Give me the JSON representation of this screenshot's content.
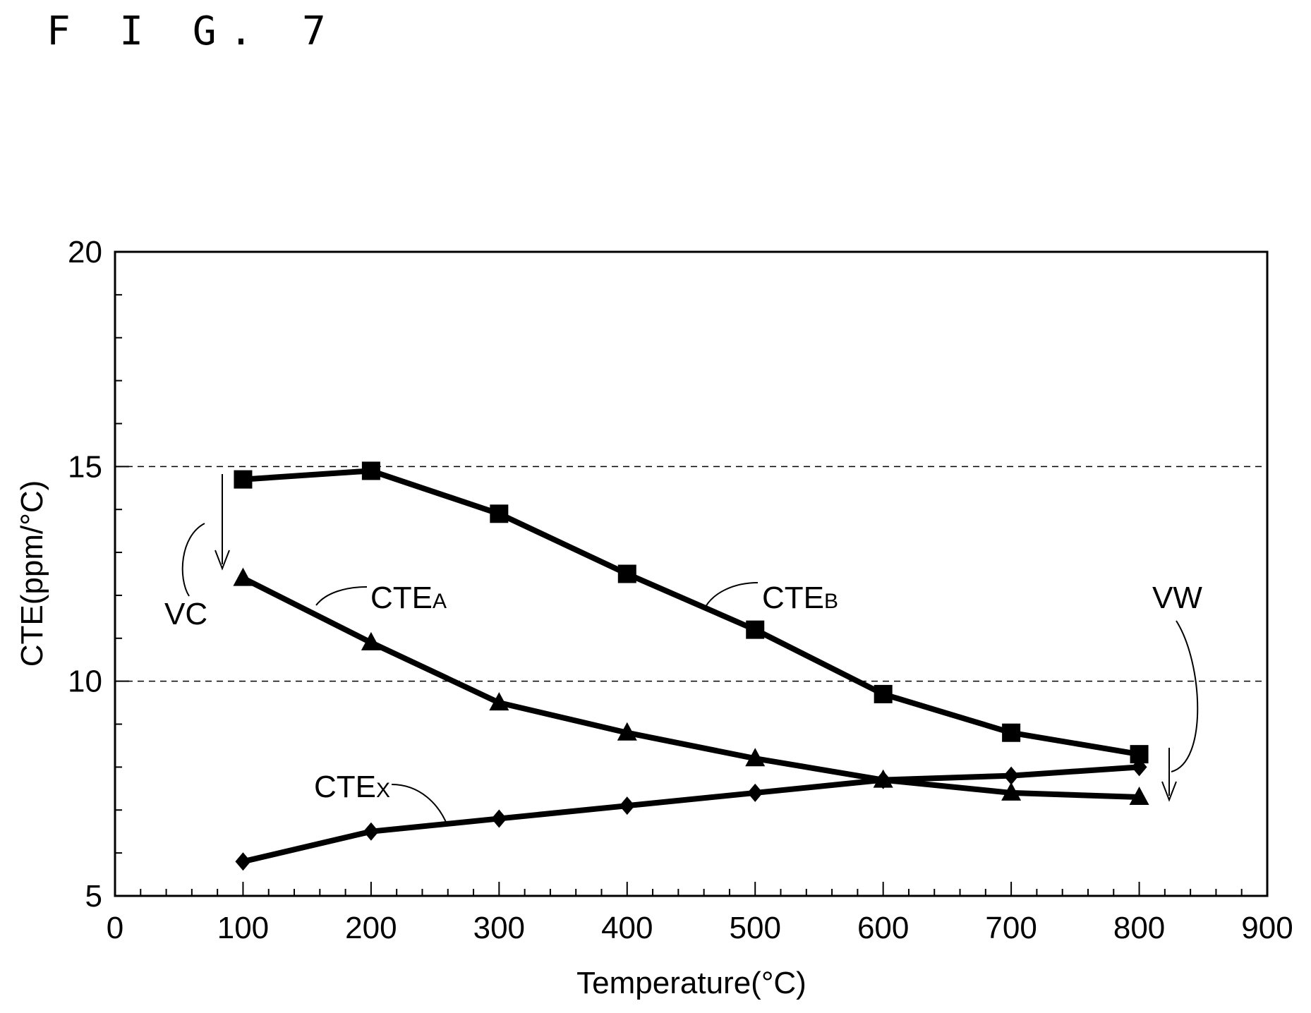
{
  "figure_label": "F I G. 7",
  "chart_data": {
    "type": "line",
    "title": "",
    "xlabel": "Temperature(°C)",
    "ylabel": "CTE(ppm/°C)",
    "xlim": [
      0,
      900
    ],
    "ylim": [
      5,
      20
    ],
    "xticks": [
      0,
      100,
      200,
      300,
      400,
      500,
      600,
      700,
      800,
      900
    ],
    "yticks": [
      5,
      10,
      15,
      20
    ],
    "reference_lines_y": [
      10,
      15
    ],
    "x": [
      100,
      200,
      300,
      400,
      500,
      600,
      700,
      800
    ],
    "series": [
      {
        "name": "CTEB",
        "marker": "square",
        "values": [
          14.7,
          14.9,
          13.9,
          12.5,
          11.2,
          9.7,
          8.8,
          8.3
        ]
      },
      {
        "name": "CTEA",
        "marker": "triangle",
        "values": [
          12.4,
          10.9,
          9.5,
          8.8,
          8.2,
          7.7,
          7.4,
          7.3
        ]
      },
      {
        "name": "CTEX",
        "marker": "diamond",
        "values": [
          5.8,
          6.5,
          6.8,
          7.1,
          7.4,
          7.7,
          7.8,
          8.0
        ]
      }
    ],
    "annotations": [
      {
        "id": "vc",
        "text": "VC"
      },
      {
        "id": "vw",
        "text": "VW"
      }
    ],
    "grid": false,
    "legend": "none"
  }
}
